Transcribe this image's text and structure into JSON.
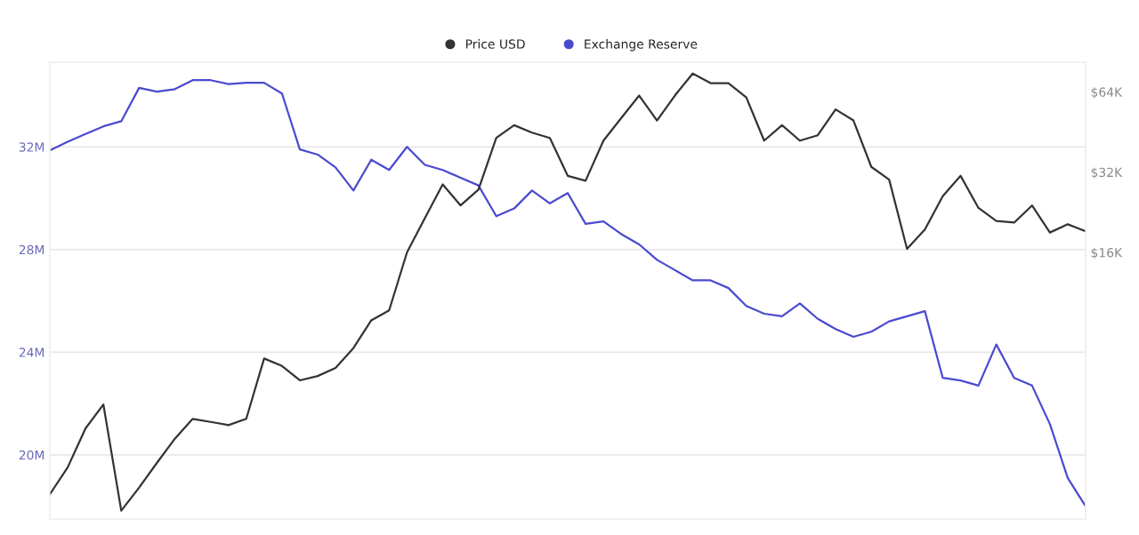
{
  "chart_data": {
    "type": "line",
    "categories": [
      null,
      null,
      null,
      null,
      null,
      null,
      null,
      null,
      null,
      null,
      null,
      null,
      null,
      null,
      null,
      null,
      null,
      null,
      null,
      null,
      null,
      null,
      null,
      null,
      null,
      null,
      null,
      null,
      null,
      null,
      null,
      null,
      null,
      null,
      null,
      null,
      null,
      null,
      null,
      null,
      null,
      null,
      null,
      null,
      null,
      null,
      null,
      null,
      null,
      null,
      null,
      null,
      null,
      null,
      null,
      null,
      null,
      null,
      null
    ],
    "ylim": [
      17.5,
      35.3
    ],
    "yticks": [
      {
        "value": 20,
        "label": "20M"
      },
      {
        "value": 24,
        "label": "24M"
      },
      {
        "value": 28,
        "label": "28M"
      },
      {
        "value": 32,
        "label": "32M"
      }
    ],
    "y2lim": [
      1.6,
      82.7
    ],
    "log": "y2",
    "y2ticks": [
      {
        "value": 16,
        "label": "$16K"
      },
      {
        "value": 32,
        "label": "$32K"
      },
      {
        "value": 64,
        "label": "$64K"
      }
    ],
    "tick_labels": "y",
    "grid": "y",
    "legend": "top",
    "marker": "none",
    "line_style": "solid",
    "series": [
      {
        "name": "Price USD",
        "color": "#333333",
        "axis": "y2",
        "values": [
          1.98,
          2.5,
          3.5,
          4.3,
          1.72,
          2.1,
          2.6,
          3.2,
          3.8,
          3.7,
          3.6,
          3.8,
          6.4,
          6.0,
          5.3,
          5.5,
          5.9,
          7.0,
          8.9,
          9.7,
          16.0,
          21.5,
          28.8,
          24.0,
          27.5,
          43.0,
          48.0,
          45.0,
          43.0,
          31.0,
          29.7,
          42.0,
          51.1,
          62.0,
          50.0,
          62.0,
          75.0,
          69.0,
          69.0,
          61.0,
          42.0,
          48.0,
          42.0,
          44.0,
          55.0,
          50.0,
          33.5,
          30.0,
          16.5,
          19.5,
          26.0,
          31.0,
          23.5,
          21.0,
          20.7,
          24.0,
          19.0,
          20.4,
          19.2
        ]
      },
      {
        "name": "Exchange Reserve",
        "color": "#4a4ad0",
        "values": [
          31.86,
          32.2,
          32.5,
          32.8,
          33.0,
          34.3,
          34.15,
          34.25,
          34.6,
          34.6,
          34.45,
          34.5,
          34.5,
          34.08,
          31.9,
          31.7,
          31.2,
          30.3,
          31.5,
          31.1,
          32.0,
          31.3,
          31.1,
          30.8,
          30.5,
          29.3,
          29.6,
          30.3,
          29.8,
          30.2,
          29.0,
          29.1,
          28.6,
          28.2,
          27.6,
          27.2,
          26.8,
          26.8,
          26.5,
          25.8,
          25.5,
          25.4,
          25.9,
          25.3,
          24.9,
          24.6,
          24.8,
          25.2,
          25.4,
          25.6,
          23.0,
          22.9,
          22.7,
          24.3,
          23.0,
          22.7,
          21.2,
          19.1,
          18.0
        ]
      }
    ]
  }
}
